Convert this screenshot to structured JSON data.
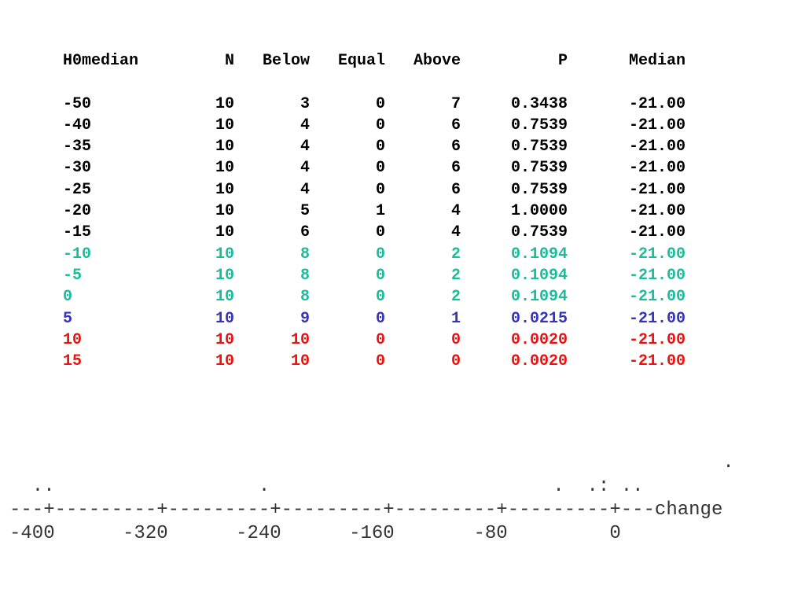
{
  "table": {
    "headers": [
      "H0median",
      "N",
      "Below",
      "Equal",
      "Above",
      "P",
      "Median"
    ],
    "rows": [
      {
        "cells": [
          "-50",
          "10",
          "3",
          "0",
          "7",
          "0.3438",
          "-21.00"
        ],
        "color": "#000000"
      },
      {
        "cells": [
          "-40",
          "10",
          "4",
          "0",
          "6",
          "0.7539",
          "-21.00"
        ],
        "color": "#000000"
      },
      {
        "cells": [
          "-35",
          "10",
          "4",
          "0",
          "6",
          "0.7539",
          "-21.00"
        ],
        "color": "#000000"
      },
      {
        "cells": [
          "-30",
          "10",
          "4",
          "0",
          "6",
          "0.7539",
          "-21.00"
        ],
        "color": "#000000"
      },
      {
        "cells": [
          "-25",
          "10",
          "4",
          "0",
          "6",
          "0.7539",
          "-21.00"
        ],
        "color": "#000000"
      },
      {
        "cells": [
          "-20",
          "10",
          "5",
          "1",
          "4",
          "1.0000",
          "-21.00"
        ],
        "color": "#000000"
      },
      {
        "cells": [
          "-15",
          "10",
          "6",
          "0",
          "4",
          "0.7539",
          "-21.00"
        ],
        "color": "#000000"
      },
      {
        "cells": [
          "-10",
          "10",
          "8",
          "0",
          "2",
          "0.1094",
          "-21.00"
        ],
        "color": "#1abc9c"
      },
      {
        "cells": [
          "-5",
          "10",
          "8",
          "0",
          "2",
          "0.1094",
          "-21.00"
        ],
        "color": "#1abc9c"
      },
      {
        "cells": [
          "0",
          "10",
          "8",
          "0",
          "2",
          "0.1094",
          "-21.00"
        ],
        "color": "#1abc9c"
      },
      {
        "cells": [
          "5",
          "10",
          "9",
          "0",
          "1",
          "0.0215",
          "-21.00"
        ],
        "color": "#3333bb"
      },
      {
        "cells": [
          "10",
          "10",
          "10",
          "0",
          "0",
          "0.0020",
          "-21.00"
        ],
        "color": "#ee1111"
      },
      {
        "cells": [
          "15",
          "10",
          "10",
          "0",
          "0",
          "0.0020",
          "-21.00"
        ],
        "color": "#ee1111"
      }
    ]
  },
  "dotplot": {
    "lines": [
      "                                                               .",
      "  ..                  .                         .  .: ..",
      "---+---------+---------+---------+---------+---------+---change",
      "-400      -320      -240      -160       -80         0"
    ]
  }
}
